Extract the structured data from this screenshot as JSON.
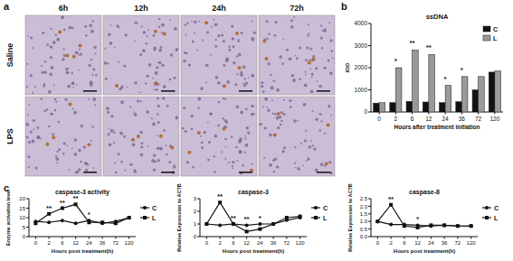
{
  "panels": [
    "a",
    "b",
    "c"
  ],
  "panel_a": {
    "columns": [
      "6h",
      "12h",
      "24h",
      "72h"
    ],
    "rows": [
      "Saline",
      "LPS"
    ]
  },
  "chart_data": [
    {
      "type": "bar",
      "title": "ssDNA",
      "y_label": "IOD",
      "x_label": "Hours after treatment initiation",
      "categories": [
        "0",
        "2",
        "6",
        "12",
        "24",
        "36",
        "72",
        "120"
      ],
      "series": [
        {
          "name": "C",
          "color": "#111111",
          "values": [
            400,
            420,
            480,
            450,
            420,
            460,
            1000,
            1800
          ]
        },
        {
          "name": "L",
          "color": "#9a9a9a",
          "values": [
            420,
            2000,
            2800,
            2600,
            1200,
            1600,
            1600,
            1850
          ]
        }
      ],
      "ylim": [
        0,
        4000
      ],
      "yticks": [
        0,
        1000,
        2000,
        3000,
        4000
      ],
      "legend": "upper-right",
      "annotations": [
        {
          "category": "2",
          "label": "*"
        },
        {
          "category": "6",
          "label": "**"
        },
        {
          "category": "12",
          "label": "**"
        },
        {
          "category": "24",
          "label": "*"
        },
        {
          "category": "36",
          "label": "*"
        }
      ]
    },
    {
      "type": "line",
      "title": "caspase-3 activity",
      "y_label": "Enzyme activation level",
      "x_label": "Hours post treatment(h)",
      "categories": [
        "0",
        "2",
        "6",
        "12",
        "24",
        "36",
        "72",
        "120"
      ],
      "series": [
        {
          "name": "C",
          "color": "#111111",
          "marker": "circle",
          "values": [
            8,
            7.5,
            8.5,
            7,
            8.5,
            7,
            8,
            10
          ]
        },
        {
          "name": "L",
          "color": "#111111",
          "marker": "square",
          "values": [
            7,
            12,
            15,
            17,
            7.5,
            7.5,
            7,
            10
          ]
        }
      ],
      "ylim": [
        0,
        20
      ],
      "yticks": [
        0,
        5,
        10,
        15,
        20
      ],
      "legend": "right",
      "annotations": [
        {
          "category": "2",
          "label": "**"
        },
        {
          "category": "6",
          "label": "**"
        },
        {
          "category": "12",
          "label": "**"
        },
        {
          "category": "24",
          "label": "*"
        }
      ]
    },
    {
      "type": "line",
      "title": "caspase-3",
      "y_label": "Relative Expression to ACTB",
      "x_label": "Hours post treatment(h)",
      "categories": [
        "0",
        "2",
        "6",
        "12",
        "24",
        "36",
        "72",
        "120"
      ],
      "series": [
        {
          "name": "C",
          "color": "#111111",
          "marker": "circle",
          "values": [
            1.0,
            0.9,
            1.0,
            0.9,
            1.0,
            1.0,
            1.3,
            1.5
          ]
        },
        {
          "name": "L",
          "color": "#111111",
          "marker": "square",
          "values": [
            1.0,
            2.7,
            1.0,
            0.4,
            0.6,
            1.0,
            1.5,
            1.6
          ]
        }
      ],
      "ylim": [
        0,
        3
      ],
      "yticks": [
        0,
        1,
        2,
        3
      ],
      "legend": "right",
      "annotations": [
        {
          "category": "2",
          "label": "**"
        },
        {
          "category": "6",
          "label": "**"
        },
        {
          "category": "12",
          "label": "**"
        },
        {
          "category": "24",
          "label": "*"
        }
      ]
    },
    {
      "type": "line",
      "title": "caspase-8",
      "y_label": "Relative Expression to ACTB",
      "x_label": "Hours post treatment(h)",
      "categories": [
        "0",
        "2",
        "6",
        "12",
        "24",
        "36",
        "72",
        "120"
      ],
      "series": [
        {
          "name": "C",
          "color": "#111111",
          "marker": "circle",
          "values": [
            1.0,
            0.8,
            0.8,
            0.75,
            0.7,
            0.75,
            0.7,
            0.7
          ]
        },
        {
          "name": "L",
          "color": "#111111",
          "marker": "square",
          "values": [
            1.0,
            2.1,
            0.7,
            0.6,
            0.75,
            0.75,
            0.7,
            0.7
          ]
        }
      ],
      "ylim": [
        0,
        2.5
      ],
      "yticks": [
        {
          "value": 0,
          "label": "0.0"
        },
        0.5,
        {
          "value": 1,
          "label": "1.0"
        },
        1.5,
        {
          "value": 2,
          "label": "2.0"
        },
        2.5
      ],
      "legend": "right",
      "annotations": [
        {
          "category": "2",
          "label": "**"
        },
        {
          "category": "12",
          "label": "*"
        }
      ]
    }
  ]
}
